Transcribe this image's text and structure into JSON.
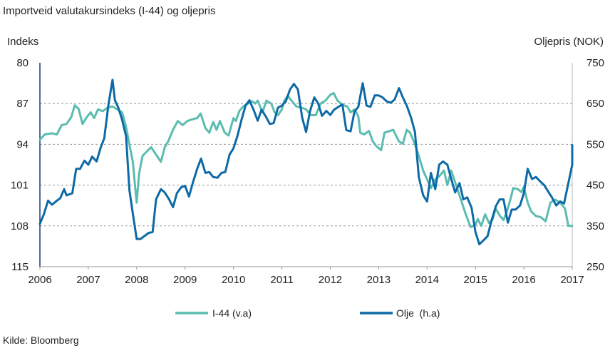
{
  "chart_data": {
    "type": "line",
    "title": "Importveid valutakursindeks (I-44) og oljepris",
    "left_axis_label": "Indeks",
    "right_axis_label": "Oljepris (NOK)",
    "x_ticks": [
      "2006",
      "2007",
      "2008",
      "2009",
      "2010",
      "2011",
      "2012",
      "2013",
      "2014",
      "2015",
      "2016",
      "2017"
    ],
    "xlim": [
      2006,
      2017
    ],
    "left_axis": {
      "ticks": [
        "80",
        "87",
        "94",
        "101",
        "108",
        "115"
      ],
      "min": 80,
      "max": 115,
      "inverted": true
    },
    "right_axis": {
      "ticks": [
        "750",
        "650",
        "550",
        "450",
        "350",
        "250"
      ],
      "min": 250,
      "max": 750
    },
    "grid": "horizontal dashed",
    "legend_position": "bottom",
    "series": [
      {
        "name": "I-44 (v.a)",
        "axis": "left",
        "color": "#5bbcb0",
        "points": [
          [
            2006.0,
            93.2
          ],
          [
            2006.1,
            92.3
          ],
          [
            2006.25,
            92.1
          ],
          [
            2006.35,
            92.3
          ],
          [
            2006.45,
            90.7
          ],
          [
            2006.55,
            90.5
          ],
          [
            2006.65,
            89.3
          ],
          [
            2006.72,
            87.3
          ],
          [
            2006.8,
            87.9
          ],
          [
            2006.88,
            90.5
          ],
          [
            2006.97,
            89.3
          ],
          [
            2007.05,
            88.5
          ],
          [
            2007.12,
            89.5
          ],
          [
            2007.2,
            88.0
          ],
          [
            2007.3,
            88.3
          ],
          [
            2007.4,
            87.7
          ],
          [
            2007.5,
            87.5
          ],
          [
            2007.6,
            88.0
          ],
          [
            2007.7,
            88.5
          ],
          [
            2007.78,
            91.0
          ],
          [
            2007.85,
            94.0
          ],
          [
            2007.92,
            97.0
          ],
          [
            2007.97,
            101.5
          ],
          [
            2008.0,
            104.0
          ],
          [
            2008.05,
            99.0
          ],
          [
            2008.12,
            96.0
          ],
          [
            2008.2,
            95.3
          ],
          [
            2008.3,
            94.5
          ],
          [
            2008.38,
            95.5
          ],
          [
            2008.5,
            97.0
          ],
          [
            2008.58,
            94.5
          ],
          [
            2008.65,
            93.5
          ],
          [
            2008.75,
            91.5
          ],
          [
            2008.85,
            90.0
          ],
          [
            2008.95,
            90.7
          ],
          [
            2009.05,
            90.0
          ],
          [
            2009.15,
            89.7
          ],
          [
            2009.25,
            89.5
          ],
          [
            2009.32,
            88.7
          ],
          [
            2009.42,
            91.2
          ],
          [
            2009.5,
            92.0
          ],
          [
            2009.58,
            90.2
          ],
          [
            2009.65,
            91.5
          ],
          [
            2009.72,
            90.0
          ],
          [
            2009.82,
            92.0
          ],
          [
            2009.9,
            92.5
          ],
          [
            2010.0,
            89.5
          ],
          [
            2010.05,
            90.0
          ],
          [
            2010.12,
            88.3
          ],
          [
            2010.2,
            87.5
          ],
          [
            2010.3,
            87.0
          ],
          [
            2010.38,
            86.6
          ],
          [
            2010.45,
            87.0
          ],
          [
            2010.5,
            86.5
          ],
          [
            2010.6,
            88.5
          ],
          [
            2010.68,
            86.5
          ],
          [
            2010.78,
            87.0
          ],
          [
            2010.85,
            88.5
          ],
          [
            2010.92,
            89.0
          ],
          [
            2011.0,
            88.0
          ],
          [
            2011.05,
            86.5
          ],
          [
            2011.12,
            85.7
          ],
          [
            2011.2,
            86.5
          ],
          [
            2011.3,
            87.5
          ],
          [
            2011.4,
            87.7
          ],
          [
            2011.5,
            88.0
          ],
          [
            2011.6,
            89.0
          ],
          [
            2011.7,
            89.0
          ],
          [
            2011.8,
            87.0
          ],
          [
            2011.9,
            86.5
          ],
          [
            2012.0,
            85.5
          ],
          [
            2012.07,
            85.2
          ],
          [
            2012.15,
            86.5
          ],
          [
            2012.25,
            87.2
          ],
          [
            2012.35,
            87.5
          ],
          [
            2012.42,
            88.5
          ],
          [
            2012.5,
            88.0
          ],
          [
            2012.58,
            89.2
          ],
          [
            2012.62,
            92.0
          ],
          [
            2012.7,
            92.3
          ],
          [
            2012.8,
            91.7
          ],
          [
            2012.88,
            93.5
          ],
          [
            2012.95,
            94.3
          ],
          [
            2013.05,
            95.0
          ],
          [
            2013.12,
            92.0
          ],
          [
            2013.2,
            91.8
          ],
          [
            2013.3,
            91.5
          ],
          [
            2013.42,
            93.5
          ],
          [
            2013.5,
            93.9
          ],
          [
            2013.58,
            91.5
          ],
          [
            2013.65,
            92.0
          ],
          [
            2013.75,
            94.0
          ],
          [
            2013.83,
            96.0
          ],
          [
            2013.92,
            98.5
          ],
          [
            2014.0,
            100.0
          ],
          [
            2014.08,
            101.5
          ],
          [
            2014.17,
            100.0
          ],
          [
            2014.25,
            99.5
          ],
          [
            2014.35,
            98.5
          ],
          [
            2014.42,
            101.0
          ],
          [
            2014.5,
            98.5
          ],
          [
            2014.6,
            101.0
          ],
          [
            2014.7,
            103.5
          ],
          [
            2014.8,
            106.0
          ],
          [
            2014.9,
            108.2
          ],
          [
            2015.0,
            107.8
          ],
          [
            2015.05,
            106.8
          ],
          [
            2015.12,
            108.0
          ],
          [
            2015.2,
            106.0
          ],
          [
            2015.28,
            107.5
          ],
          [
            2015.35,
            107.0
          ],
          [
            2015.42,
            105.0
          ],
          [
            2015.5,
            106.2
          ],
          [
            2015.58,
            107.0
          ],
          [
            2015.65,
            105.5
          ],
          [
            2015.72,
            103.5
          ],
          [
            2015.78,
            101.5
          ],
          [
            2015.88,
            101.7
          ],
          [
            2015.95,
            102.2
          ],
          [
            2016.0,
            101.3
          ],
          [
            2016.08,
            104.0
          ],
          [
            2016.15,
            105.5
          ],
          [
            2016.25,
            106.3
          ],
          [
            2016.35,
            106.5
          ],
          [
            2016.45,
            107.2
          ],
          [
            2016.55,
            104.0
          ],
          [
            2016.65,
            103.5
          ],
          [
            2016.75,
            104.0
          ],
          [
            2016.85,
            105.0
          ],
          [
            2016.92,
            108.0
          ],
          [
            2017.0,
            108.0
          ]
        ]
      },
      {
        "name": "Olje  (h.a)",
        "axis": "right",
        "color": "#0d6aa6",
        "points": [
          [
            2006.0,
            355
          ],
          [
            2006.08,
            378
          ],
          [
            2006.17,
            412
          ],
          [
            2006.25,
            402
          ],
          [
            2006.33,
            410
          ],
          [
            2006.42,
            418
          ],
          [
            2006.5,
            440
          ],
          [
            2006.55,
            425
          ],
          [
            2006.67,
            430
          ],
          [
            2006.75,
            490
          ],
          [
            2006.83,
            490
          ],
          [
            2006.92,
            510
          ],
          [
            2007.0,
            500
          ],
          [
            2007.08,
            520
          ],
          [
            2007.17,
            508
          ],
          [
            2007.25,
            540
          ],
          [
            2007.33,
            565
          ],
          [
            2007.42,
            650
          ],
          [
            2007.5,
            708
          ],
          [
            2007.55,
            658
          ],
          [
            2007.62,
            640
          ],
          [
            2007.7,
            610
          ],
          [
            2007.78,
            570
          ],
          [
            2007.85,
            438
          ],
          [
            2007.92,
            380
          ],
          [
            2008.0,
            318
          ],
          [
            2008.08,
            318
          ],
          [
            2008.17,
            326
          ],
          [
            2008.25,
            333
          ],
          [
            2008.33,
            335
          ],
          [
            2008.4,
            415
          ],
          [
            2008.5,
            440
          ],
          [
            2008.58,
            432
          ],
          [
            2008.67,
            415
          ],
          [
            2008.75,
            396
          ],
          [
            2008.83,
            430
          ],
          [
            2008.92,
            445
          ],
          [
            2009.0,
            448
          ],
          [
            2009.08,
            422
          ],
          [
            2009.17,
            460
          ],
          [
            2009.25,
            490
          ],
          [
            2009.33,
            515
          ],
          [
            2009.42,
            480
          ],
          [
            2009.5,
            482
          ],
          [
            2009.58,
            470
          ],
          [
            2009.67,
            468
          ],
          [
            2009.75,
            480
          ],
          [
            2009.83,
            482
          ],
          [
            2009.92,
            525
          ],
          [
            2010.0,
            540
          ],
          [
            2010.08,
            570
          ],
          [
            2010.17,
            612
          ],
          [
            2010.25,
            645
          ],
          [
            2010.33,
            658
          ],
          [
            2010.42,
            633
          ],
          [
            2010.5,
            608
          ],
          [
            2010.58,
            635
          ],
          [
            2010.67,
            618
          ],
          [
            2010.75,
            600
          ],
          [
            2010.83,
            602
          ],
          [
            2010.92,
            640
          ],
          [
            2011.0,
            645
          ],
          [
            2011.08,
            655
          ],
          [
            2011.17,
            685
          ],
          [
            2011.25,
            698
          ],
          [
            2011.33,
            685
          ],
          [
            2011.42,
            615
          ],
          [
            2011.5,
            580
          ],
          [
            2011.58,
            630
          ],
          [
            2011.67,
            665
          ],
          [
            2011.75,
            650
          ],
          [
            2011.83,
            620
          ],
          [
            2011.92,
            632
          ],
          [
            2012.0,
            622
          ],
          [
            2012.08,
            635
          ],
          [
            2012.17,
            642
          ],
          [
            2012.25,
            648
          ],
          [
            2012.33,
            585
          ],
          [
            2012.42,
            582
          ],
          [
            2012.5,
            630
          ],
          [
            2012.58,
            642
          ],
          [
            2012.67,
            700
          ],
          [
            2012.75,
            645
          ],
          [
            2012.83,
            642
          ],
          [
            2012.92,
            670
          ],
          [
            2013.0,
            670
          ],
          [
            2013.08,
            665
          ],
          [
            2013.17,
            655
          ],
          [
            2013.25,
            652
          ],
          [
            2013.33,
            660
          ],
          [
            2013.42,
            688
          ],
          [
            2013.5,
            665
          ],
          [
            2013.58,
            645
          ],
          [
            2013.67,
            615
          ],
          [
            2013.75,
            580
          ],
          [
            2013.83,
            470
          ],
          [
            2013.92,
            425
          ],
          [
            2014.0,
            410
          ],
          [
            2014.08,
            480
          ],
          [
            2014.17,
            440
          ],
          [
            2014.25,
            500
          ],
          [
            2014.33,
            508
          ],
          [
            2014.42,
            500
          ],
          [
            2014.5,
            465
          ],
          [
            2014.58,
            432
          ],
          [
            2014.67,
            455
          ],
          [
            2014.75,
            415
          ],
          [
            2014.83,
            420
          ],
          [
            2014.92,
            395
          ],
          [
            2015.0,
            335
          ],
          [
            2015.08,
            305
          ],
          [
            2015.17,
            315
          ],
          [
            2015.25,
            325
          ],
          [
            2015.33,
            362
          ],
          [
            2015.42,
            398
          ],
          [
            2015.5,
            415
          ],
          [
            2015.58,
            415
          ],
          [
            2015.67,
            358
          ],
          [
            2015.75,
            390
          ],
          [
            2015.83,
            390
          ],
          [
            2015.92,
            400
          ],
          [
            2016.0,
            430
          ],
          [
            2016.08,
            490
          ],
          [
            2016.17,
            465
          ],
          [
            2016.25,
            470
          ],
          [
            2016.33,
            460
          ],
          [
            2016.42,
            450
          ],
          [
            2016.5,
            435
          ],
          [
            2016.58,
            420
          ],
          [
            2016.67,
            400
          ],
          [
            2016.75,
            410
          ],
          [
            2016.83,
            405
          ],
          [
            2016.92,
            455
          ],
          [
            2017.0,
            500
          ],
          [
            2017.08,
            530
          ],
          [
            2017.17,
            548
          ]
        ]
      }
    ]
  },
  "source": "Kilde: Bloomberg"
}
